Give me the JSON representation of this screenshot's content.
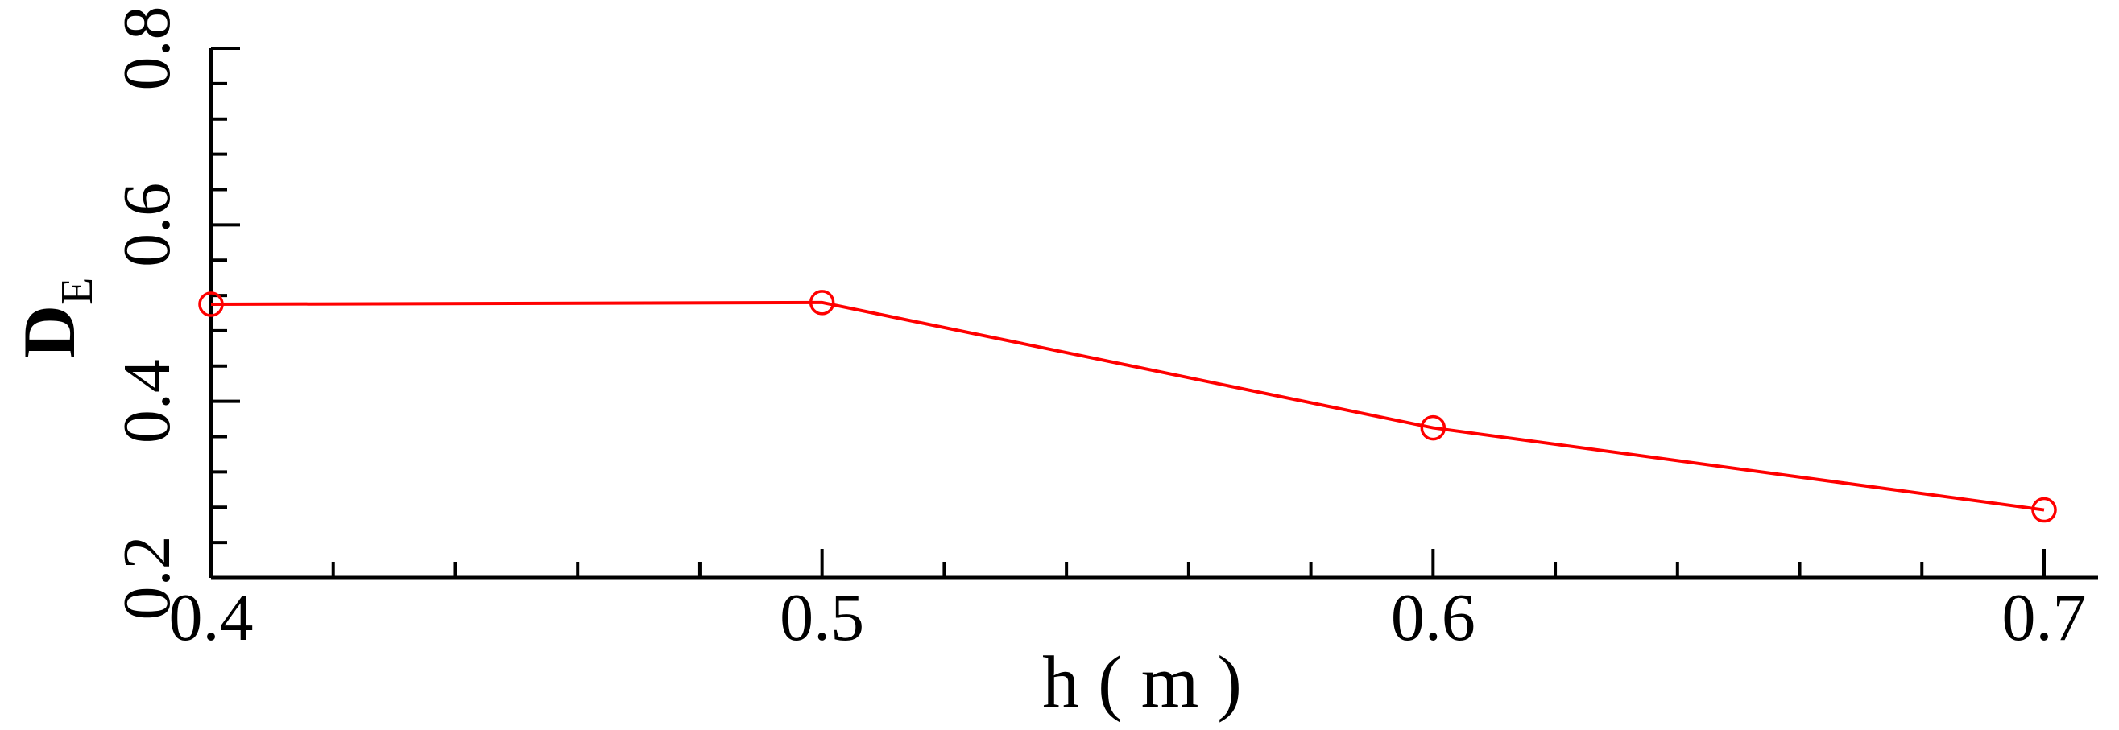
{
  "chart_data": {
    "type": "line",
    "xlabel": "h ( m )",
    "ylabel_main": "D",
    "ylabel_sub": "E",
    "x_ticks": [
      "0.4",
      "0.5",
      "0.6",
      "0.7"
    ],
    "y_ticks": [
      "0.2",
      "0.4",
      "0.6",
      "0.8"
    ],
    "xlim": [
      0.4,
      0.7
    ],
    "ylim": [
      0.2,
      0.8
    ],
    "grid": false,
    "series": [
      {
        "color": "#ff0000",
        "marker": "circle-open",
        "x": [
          0.4,
          0.5,
          0.6,
          0.7
        ],
        "y": [
          0.51,
          0.512,
          0.37,
          0.277
        ]
      }
    ]
  }
}
